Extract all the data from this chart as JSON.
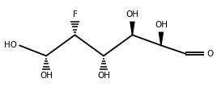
{
  "bg_color": "#ffffff",
  "line_color": "#000000",
  "lw": 1.3,
  "font_size": 7.5,
  "fig_w": 2.68,
  "fig_h": 1.18,
  "dpi": 100,
  "xlim": [
    0.0,
    1.05
  ],
  "ylim": [
    0.05,
    0.95
  ]
}
